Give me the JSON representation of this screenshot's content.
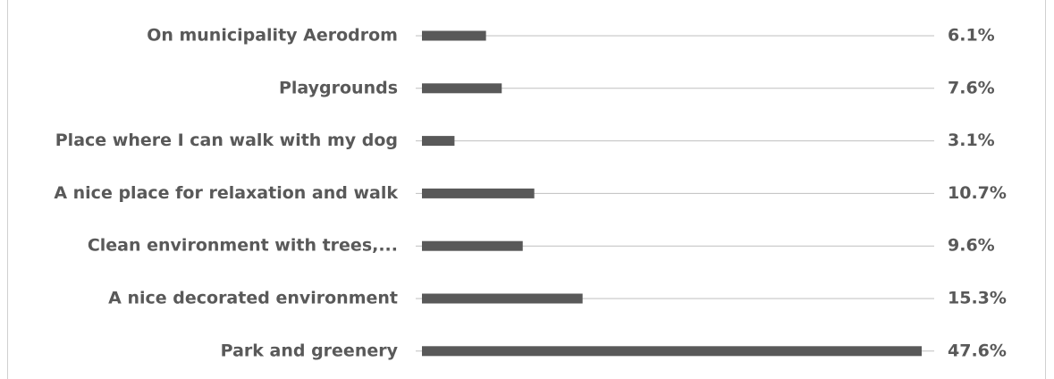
{
  "chart_data": {
    "type": "bar",
    "orientation": "horizontal",
    "categories": [
      "On municipality Aerodrom",
      "Playgrounds",
      "Place where I can walk with my dog",
      "A nice place for relaxation and walk",
      "Clean environment with trees,...",
      "A nice decorated environment",
      "Park and greenery"
    ],
    "values": [
      6.1,
      7.6,
      3.1,
      10.7,
      9.6,
      15.3,
      47.6
    ],
    "value_labels": [
      "6.1%",
      "7.6%",
      "3.1%",
      "10.7%",
      "9.6%",
      "15.3%",
      "47.6%"
    ],
    "color": "#595959"
  }
}
